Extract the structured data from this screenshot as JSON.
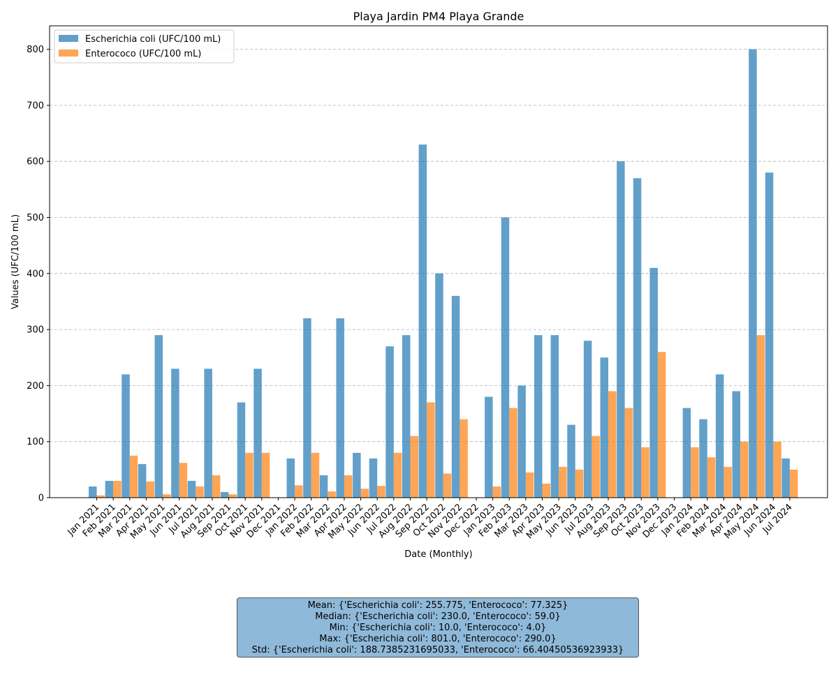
{
  "chart_data": {
    "type": "bar",
    "title": "Playa Jardin PM4 Playa Grande",
    "xlabel": "Date (Monthly)",
    "ylabel": "Values (UFC/100 mL)",
    "ylim": [
      0,
      840
    ],
    "yticks": [
      0,
      100,
      200,
      300,
      400,
      500,
      600,
      700,
      800
    ],
    "grid": true,
    "legend_position": "top-left",
    "categories": [
      "Jan 2021",
      "Feb 2021",
      "Mar 2021",
      "Apr 2021",
      "May 2021",
      "Jun 2021",
      "Jul 2021",
      "Aug 2021",
      "Sep 2021",
      "Oct 2021",
      "Nov 2021",
      "Dec 2021",
      "Jan 2022",
      "Feb 2022",
      "Mar 2022",
      "Apr 2022",
      "May 2022",
      "Jun 2022",
      "Jul 2022",
      "Aug 2022",
      "Sep 2022",
      "Oct 2022",
      "Nov 2022",
      "Dec 2022",
      "Jan 2023",
      "Feb 2023",
      "Mar 2023",
      "Apr 2023",
      "May 2023",
      "Jun 2023",
      "Jul 2023",
      "Aug 2023",
      "Sep 2023",
      "Oct 2023",
      "Nov 2023",
      "Dec 2023",
      "Jan 2024",
      "Feb 2024",
      "Mar 2024",
      "Apr 2024",
      "May 2024",
      "Jun 2024",
      "Jul 2024"
    ],
    "series": [
      {
        "name": "Escherichia coli (UFC/100 mL)",
        "color": "#1f77b4",
        "values": [
          20,
          30,
          220,
          60,
          290,
          230,
          30,
          230,
          10,
          170,
          230,
          null,
          70,
          320,
          40,
          320,
          80,
          70,
          270,
          290,
          630,
          400,
          360,
          null,
          180,
          500,
          200,
          290,
          290,
          130,
          280,
          250,
          600,
          570,
          410,
          null,
          160,
          140,
          220,
          190,
          800,
          580,
          70
        ]
      },
      {
        "name": "Enterococo (UFC/100 mL)",
        "color": "#ff7f0e",
        "values": [
          4,
          30,
          75,
          29,
          6,
          62,
          20,
          40,
          6,
          80,
          80,
          null,
          22,
          80,
          11,
          40,
          16,
          21,
          80,
          110,
          170,
          43,
          140,
          null,
          20,
          160,
          45,
          25,
          55,
          50,
          110,
          190,
          160,
          90,
          260,
          null,
          90,
          72,
          55,
          100,
          290,
          100,
          50
        ]
      }
    ]
  },
  "stats": {
    "mean": "Mean: {'Escherichia coli': 255.775, 'Enterococo': 77.325}",
    "median": "Median: {'Escherichia coli': 230.0, 'Enterococo': 59.0}",
    "min": "Min: {'Escherichia coli': 10.0, 'Enterococo': 4.0}",
    "max": "Max: {'Escherichia coli': 801.0, 'Enterococo': 290.0}",
    "std": "Std: {'Escherichia coli': 188.7385231695033, 'Enterococo': 66.40450536923933}"
  }
}
